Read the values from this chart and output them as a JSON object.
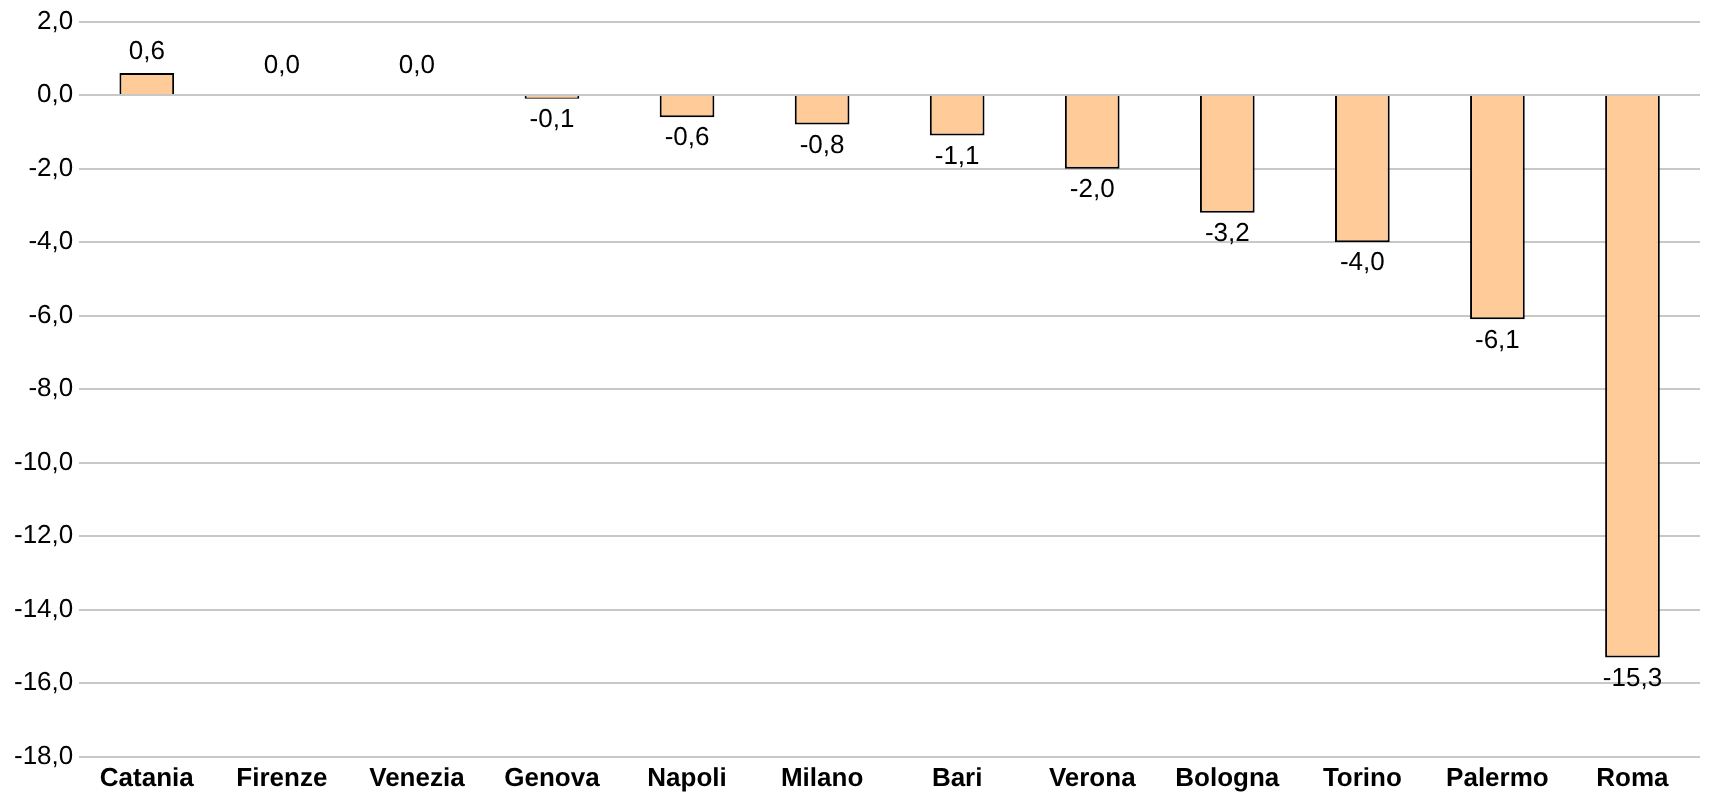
{
  "chart_data": {
    "type": "bar",
    "categories": [
      "Catania",
      "Firenze",
      "Venezia",
      "Genova",
      "Napoli",
      "Milano",
      "Bari",
      "Verona",
      "Bologna",
      "Torino",
      "Palermo",
      "Roma"
    ],
    "values": [
      0.6,
      0,
      0,
      -0.1,
      -0.6,
      -0.8,
      -1.1,
      -2.0,
      -3.2,
      -4.0,
      -6.1,
      -15.3
    ],
    "value_labels": [
      "0,6",
      "0,0",
      "0,0",
      "-0,1",
      "-0,6",
      "-0,8",
      "-1,1",
      "-2,0",
      "-3,2",
      "-4,0",
      "-6,1",
      "-15,3"
    ],
    "color": "#ffcc99",
    "ylim": [
      -18,
      2
    ],
    "yticks": [
      {
        "value": -18,
        "label": "-18,0"
      },
      {
        "value": -16,
        "label": "-16,0"
      },
      {
        "value": -14,
        "label": "-14,0"
      },
      {
        "value": -12,
        "label": "-12,0"
      },
      {
        "value": -10,
        "label": "-10,0"
      },
      {
        "value": -8,
        "label": "-8,0"
      },
      {
        "value": -6,
        "label": "-6,0"
      },
      {
        "value": -4,
        "label": "-4,0"
      },
      {
        "value": -2,
        "label": "-2,0"
      },
      {
        "value": 0,
        "label": "0,0"
      },
      {
        "value": 2,
        "label": "2,0"
      }
    ],
    "grid": "y",
    "legend": false
  }
}
